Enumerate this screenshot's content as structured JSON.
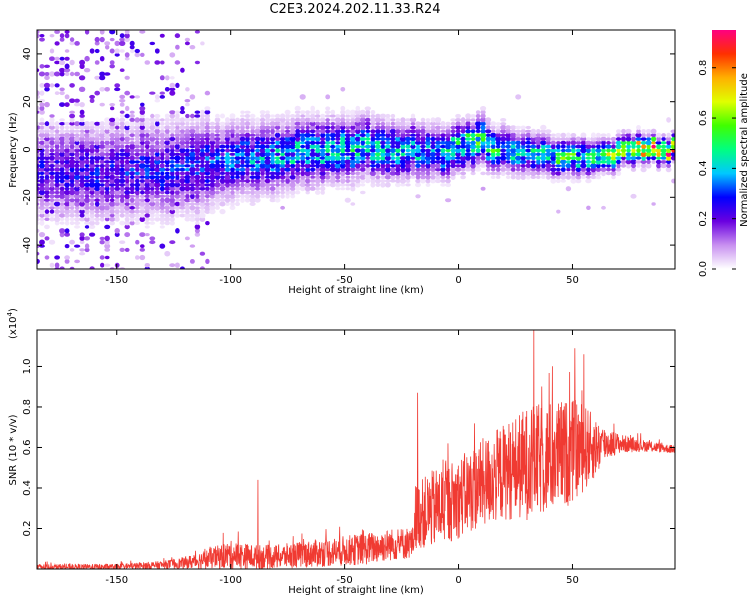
{
  "title": "C2E3.2024.202.11.33.R24",
  "colors": {
    "background": "#ffffff",
    "frame": "#000000",
    "snr_line": "#f03a32"
  },
  "chart_data": [
    {
      "type": "heatmap",
      "title": "C2E3.2024.202.11.33.R24",
      "xlabel": "Height of straight line (km)",
      "ylabel": "Frequency (Hz)",
      "xlim": [
        -185,
        95
      ],
      "ylim": [
        -50,
        50
      ],
      "x_ticks": [
        -150,
        -100,
        -50,
        0,
        50
      ],
      "y_ticks": [
        -40,
        -20,
        0,
        20,
        40
      ],
      "colorbar": {
        "label": "Normalized spectral amplitude",
        "range": [
          0.0,
          0.95
        ],
        "ticks": [
          0.0,
          0.2,
          0.4,
          0.6,
          0.8
        ],
        "colormap": [
          "#ffffff",
          "#c890f0",
          "#6a00e0",
          "#0000ff",
          "#00c8ff",
          "#00ff80",
          "#40ff00",
          "#e0ff00",
          "#ffb000",
          "#ff3000",
          "#ff0080"
        ]
      },
      "ridge": {
        "x": [
          -185,
          -150,
          -120,
          -100,
          -80,
          -60,
          -40,
          -20,
          -10,
          0,
          5,
          10,
          15,
          20,
          30,
          40,
          50,
          60,
          70,
          80,
          95
        ],
        "center_hz": [
          -10,
          -9,
          -8,
          -5,
          -3,
          0,
          1,
          0,
          -2,
          0,
          2,
          5,
          -1,
          0,
          -1,
          -2,
          -3,
          -3,
          -1,
          0,
          0
        ],
        "peak_amplitude": [
          0.25,
          0.28,
          0.3,
          0.35,
          0.4,
          0.45,
          0.45,
          0.45,
          0.42,
          0.5,
          0.55,
          0.6,
          0.5,
          0.45,
          0.45,
          0.5,
          0.55,
          0.55,
          0.65,
          0.8,
          0.9
        ]
      },
      "noise_region": {
        "x_range": [
          -185,
          -110
        ],
        "freq_range": [
          -50,
          50
        ]
      }
    },
    {
      "type": "line",
      "xlabel": "Height of straight line (km)",
      "ylabel": "SNR (10 * v/v)",
      "y_multiplier": "(x10",
      "y_multiplier_exp": "4",
      "xlim": [
        -185,
        95
      ],
      "ylim": [
        0,
        1.18
      ],
      "x_ticks": [
        -150,
        -100,
        -50,
        0,
        50
      ],
      "y_ticks": [
        0.2,
        0.4,
        0.6,
        0.8,
        1.0
      ],
      "envelope": {
        "x": [
          -185,
          -150,
          -130,
          -120,
          -110,
          -100,
          -90,
          -80,
          -60,
          -40,
          -30,
          -20,
          -19,
          -10,
          0,
          10,
          20,
          30,
          40,
          50,
          55,
          60,
          65,
          70,
          80,
          95
        ],
        "base": [
          0.01,
          0.01,
          0.02,
          0.03,
          0.05,
          0.07,
          0.06,
          0.06,
          0.08,
          0.1,
          0.12,
          0.13,
          0.26,
          0.3,
          0.35,
          0.42,
          0.48,
          0.52,
          0.55,
          0.58,
          0.6,
          0.6,
          0.62,
          0.62,
          0.61,
          0.59
        ],
        "spread": [
          0.015,
          0.015,
          0.02,
          0.03,
          0.05,
          0.07,
          0.06,
          0.06,
          0.07,
          0.08,
          0.08,
          0.08,
          0.16,
          0.2,
          0.2,
          0.22,
          0.24,
          0.28,
          0.28,
          0.26,
          0.22,
          0.15,
          0.08,
          0.05,
          0.03,
          0.02
        ]
      },
      "spikes": [
        {
          "x": -88,
          "y": 0.44
        },
        {
          "x": -18,
          "y": 0.87
        },
        {
          "x": 33,
          "y": 1.18
        },
        {
          "x": 51,
          "y": 1.09
        },
        {
          "x": 55,
          "y": 1.06
        }
      ]
    }
  ]
}
